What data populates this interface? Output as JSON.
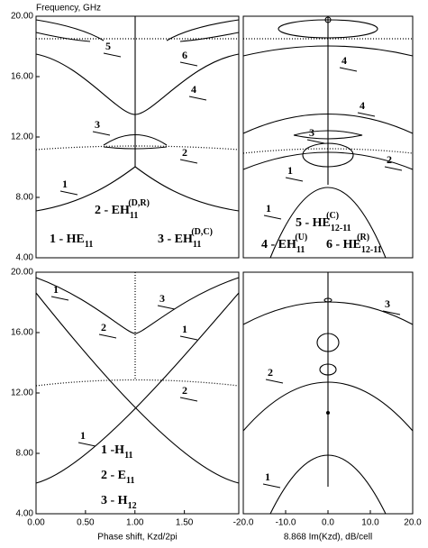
{
  "y_axis_label": "Frequency, GHz",
  "chart_data": [
    {
      "type": "line",
      "ylim": [
        4,
        20
      ],
      "xlim": [
        0,
        2.05
      ],
      "yticks": [
        {
          "value": 4,
          "label": "4.00"
        },
        {
          "value": 8,
          "label": "8.00"
        },
        {
          "value": 12,
          "label": "12.00"
        },
        {
          "value": 16,
          "label": "16.00"
        },
        {
          "value": 20,
          "label": "20.00"
        }
      ],
      "annotations": [
        "1",
        "2",
        "3",
        "4",
        "5",
        "6"
      ],
      "legend": [
        {
          "text": "1 - HE",
          "sub": "11"
        },
        {
          "text": "2 - EH",
          "sub": "11",
          "sup": "(D,R)"
        },
        {
          "text": "3 - EH",
          "sub": "11",
          "sup": "(D,C)"
        }
      ]
    },
    {
      "type": "line",
      "ylim": [
        4,
        20
      ],
      "xlim": [
        -20,
        20
      ],
      "annotations": [
        "1",
        "1",
        "2",
        "3",
        "4",
        "4"
      ],
      "legend": [
        {
          "text": "5 - HE",
          "sub": "12-11",
          "sup": "(C)"
        },
        {
          "text": "4 - EH",
          "sub": "11",
          "sup": "(U)"
        },
        {
          "text": "6 - HE",
          "sub": "12-11",
          "sup": "(R)"
        }
      ]
    },
    {
      "type": "line",
      "ylim": [
        4,
        20
      ],
      "xlim": [
        0,
        2.05
      ],
      "yticks": [
        {
          "value": 4,
          "label": "4.00"
        },
        {
          "value": 8,
          "label": "8.00"
        },
        {
          "value": 12,
          "label": "12.00"
        },
        {
          "value": 16,
          "label": "16.00"
        },
        {
          "value": 20,
          "label": "20.00"
        }
      ],
      "xticks": [
        {
          "value": 0,
          "label": "0.00"
        },
        {
          "value": 0.5,
          "label": "0.50"
        },
        {
          "value": 1,
          "label": "1.00"
        },
        {
          "value": 1.5,
          "label": "1.50"
        }
      ],
      "xlabel": "Phase shift,  Kzd/2pi",
      "annotations": [
        "1",
        "1",
        "1",
        "2",
        "2",
        "3"
      ],
      "legend": [
        {
          "text": "1 -H",
          "sub": "11"
        },
        {
          "text": "2 - E",
          "sub": "11"
        },
        {
          "text": "3 - H",
          "sub": "12"
        }
      ]
    },
    {
      "type": "line",
      "ylim": [
        4,
        20
      ],
      "xlim": [
        -20,
        20
      ],
      "xticks": [
        {
          "value": -20,
          "label": "-20.0"
        },
        {
          "value": -10,
          "label": "-10.0"
        },
        {
          "value": 0,
          "label": "0.0"
        },
        {
          "value": 10,
          "label": "10.0"
        },
        {
          "value": 20,
          "label": "20.0"
        }
      ],
      "xlabel": "8.868 Im(Kzd), dB/cell",
      "annotations": [
        "1",
        "2",
        "3"
      ]
    }
  ]
}
